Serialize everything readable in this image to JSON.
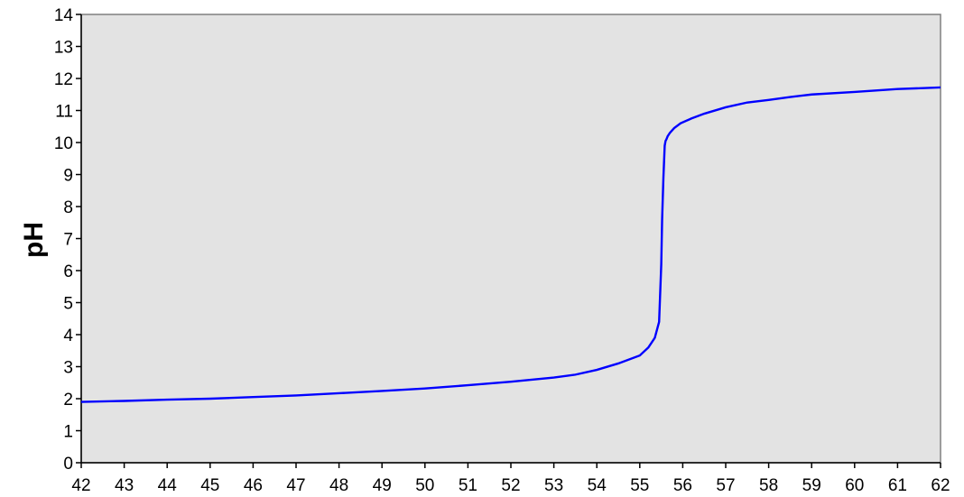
{
  "chart_data": {
    "type": "line",
    "title": "",
    "xlabel": "",
    "ylabel": "pH",
    "xlim": [
      42,
      62
    ],
    "ylim": [
      0,
      14
    ],
    "x_ticks": [
      "42",
      "43",
      "44",
      "45",
      "46",
      "47",
      "48",
      "49",
      "50",
      "51",
      "52",
      "53",
      "54",
      "55",
      "56",
      "57",
      "58",
      "59",
      "60",
      "61",
      "62"
    ],
    "y_ticks": [
      "0",
      "1",
      "2",
      "3",
      "4",
      "5",
      "6",
      "7",
      "8",
      "9",
      "10",
      "11",
      "12",
      "13",
      "14"
    ],
    "grid": false,
    "legend": "none",
    "colors": {
      "plot_background": "#e3e3e3",
      "line": "#0000ff",
      "axis": "#000000",
      "frame": "#808080"
    },
    "series": [
      {
        "x": [
          42,
          43,
          44,
          45,
          46,
          47,
          48,
          49,
          50,
          51,
          52,
          53,
          53.5,
          54,
          54.5,
          55,
          55.2,
          55.35,
          55.45,
          55.5,
          55.52,
          55.55,
          55.58,
          55.6,
          55.62,
          55.65,
          55.7,
          55.8,
          55.95,
          56.2,
          56.5,
          57,
          57.5,
          58,
          58.5,
          59,
          60,
          61,
          62
        ],
        "y": [
          1.9,
          1.93,
          1.97,
          2.0,
          2.05,
          2.1,
          2.17,
          2.24,
          2.32,
          2.42,
          2.53,
          2.66,
          2.75,
          2.9,
          3.1,
          3.35,
          3.6,
          3.9,
          4.4,
          6.2,
          7.6,
          8.9,
          9.9,
          10.05,
          10.1,
          10.2,
          10.3,
          10.45,
          10.6,
          10.75,
          10.9,
          11.1,
          11.25,
          11.33,
          11.42,
          11.5,
          11.58,
          11.67,
          11.72
        ]
      }
    ]
  }
}
